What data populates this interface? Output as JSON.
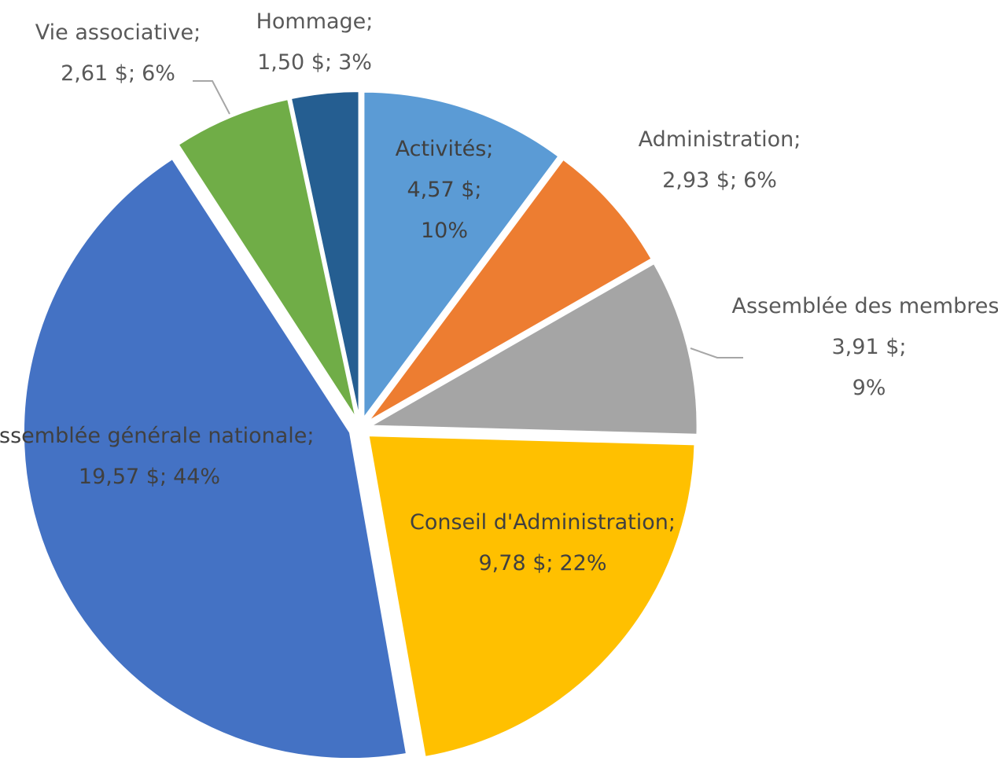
{
  "chart_data": {
    "type": "pie",
    "categories": [
      "Activités;",
      "Administration;",
      "Assemblée des membres;",
      "Conseil d'Administration;",
      "Assemblée générale nationale;",
      "Vie associative;",
      "Hommage;"
    ],
    "values": [
      4.57,
      2.93,
      3.91,
      9.78,
      19.57,
      2.61,
      1.5
    ],
    "value_labels": [
      "4,57 $;",
      "2,93 $;",
      "3,91 $;",
      "9,78 $;",
      "19,57 $;",
      "2,61 $;",
      "1,50 $;"
    ],
    "percents": [
      10,
      6,
      9,
      22,
      44,
      6,
      3
    ],
    "percent_labels": [
      "10%",
      "6%",
      "9%",
      "22%",
      "44%",
      "6%",
      "3%"
    ],
    "colors": [
      "#5b9bd5",
      "#ed7d31",
      "#a5a5a5",
      "#ffc000",
      "#4472c4",
      "#70ad47",
      "#255e91"
    ]
  }
}
